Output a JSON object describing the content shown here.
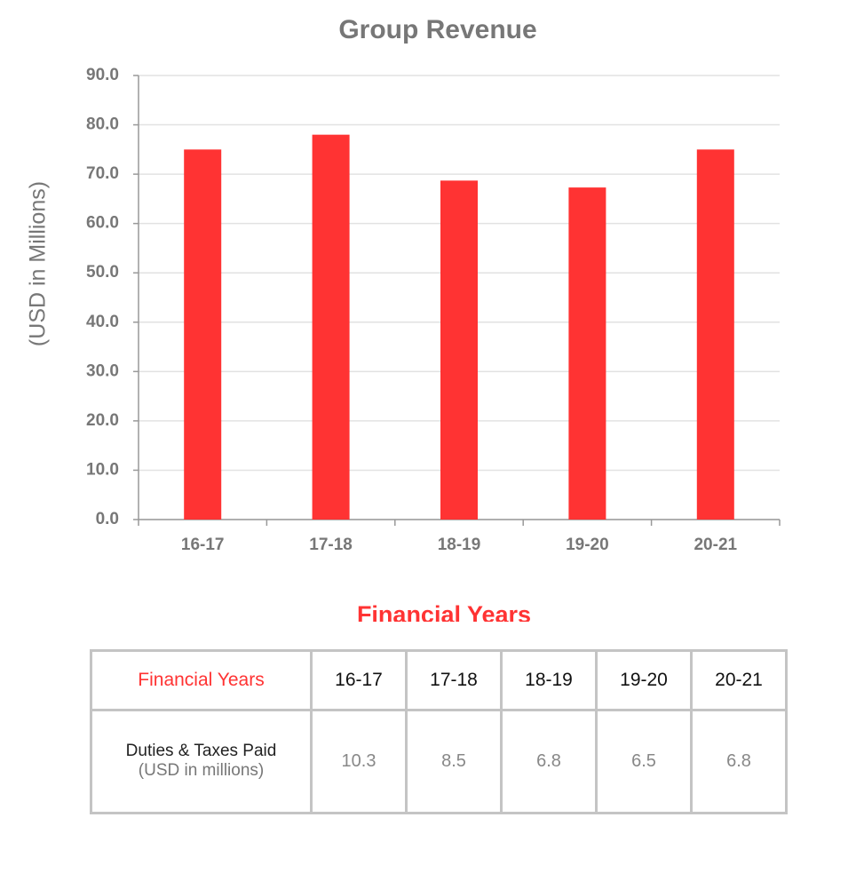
{
  "chart_data": {
    "type": "bar",
    "title": "Group Revenue",
    "y_label": "(USD in Millions)",
    "x_label": "Financial Years",
    "categories": [
      "16-17",
      "17-18",
      "18-19",
      "19-20",
      "20-21"
    ],
    "values": [
      75.0,
      78.0,
      68.7,
      67.3,
      75.0
    ],
    "color": "#ff3333",
    "ylim": [
      0,
      90
    ],
    "yticks": [
      {
        "value": 0,
        "label": "0.0"
      },
      {
        "value": 10,
        "label": "10.0"
      },
      {
        "value": 20,
        "label": "20.0"
      },
      {
        "value": 30,
        "label": "30.0"
      },
      {
        "value": 40,
        "label": "40.0"
      },
      {
        "value": 50,
        "label": "50.0"
      },
      {
        "value": 60,
        "label": "60.0"
      },
      {
        "value": 70,
        "label": "70.0"
      },
      {
        "value": 80,
        "label": "80.0"
      },
      {
        "value": 90,
        "label": "90.0"
      }
    ],
    "grid": true
  },
  "table": {
    "header": [
      "Financial Years",
      "16-17",
      "17-18",
      "18-19",
      "19-20",
      "20-21"
    ],
    "rows": [
      {
        "label": "Duties & Taxes Paid",
        "unit": "(USD in millions)",
        "values": [
          10.3,
          8.5,
          6.8,
          6.5,
          6.8
        ]
      }
    ]
  }
}
